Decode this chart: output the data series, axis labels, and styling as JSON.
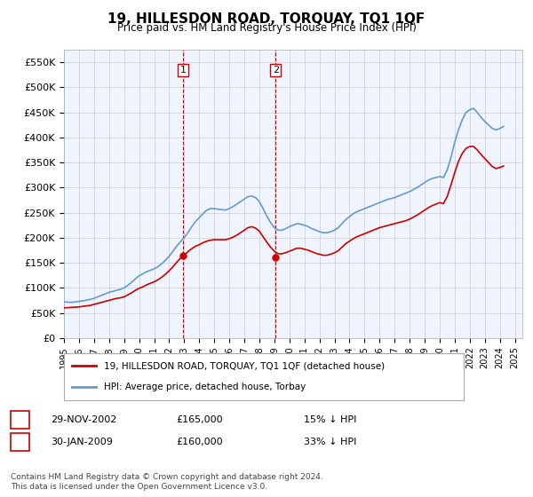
{
  "title": "19, HILLESDON ROAD, TORQUAY, TQ1 1QF",
  "subtitle": "Price paid vs. HM Land Registry's House Price Index (HPI)",
  "hpi_color": "#6699cc",
  "price_color": "#cc0000",
  "background_color": "#ffffff",
  "plot_bg_color": "#f0f4ff",
  "grid_color": "#cccccc",
  "ylim": [
    0,
    575000
  ],
  "yticks": [
    0,
    50000,
    100000,
    150000,
    200000,
    250000,
    300000,
    350000,
    400000,
    450000,
    500000,
    550000
  ],
  "xlim_start": 1995.0,
  "xlim_end": 2025.5,
  "sale1_x": 2002.92,
  "sale1_y": 165000,
  "sale1_label": "1",
  "sale2_x": 2009.08,
  "sale2_y": 160000,
  "sale2_label": "2",
  "legend_line1": "19, HILLESDON ROAD, TORQUAY, TQ1 1QF (detached house)",
  "legend_line2": "HPI: Average price, detached house, Torbay",
  "table_row1_num": "1",
  "table_row1_date": "29-NOV-2002",
  "table_row1_price": "£165,000",
  "table_row1_hpi": "15% ↓ HPI",
  "table_row2_num": "2",
  "table_row2_date": "30-JAN-2009",
  "table_row2_price": "£160,000",
  "table_row2_hpi": "33% ↓ HPI",
  "footer": "Contains HM Land Registry data © Crown copyright and database right 2024.\nThis data is licensed under the Open Government Licence v3.0.",
  "hpi_data_x": [
    1995.0,
    1995.25,
    1995.5,
    1995.75,
    1996.0,
    1996.25,
    1996.5,
    1996.75,
    1997.0,
    1997.25,
    1997.5,
    1997.75,
    1998.0,
    1998.25,
    1998.5,
    1998.75,
    1999.0,
    1999.25,
    1999.5,
    1999.75,
    2000.0,
    2000.25,
    2000.5,
    2000.75,
    2001.0,
    2001.25,
    2001.5,
    2001.75,
    2002.0,
    2002.25,
    2002.5,
    2002.75,
    2003.0,
    2003.25,
    2003.5,
    2003.75,
    2004.0,
    2004.25,
    2004.5,
    2004.75,
    2005.0,
    2005.25,
    2005.5,
    2005.75,
    2006.0,
    2006.25,
    2006.5,
    2006.75,
    2007.0,
    2007.25,
    2007.5,
    2007.75,
    2008.0,
    2008.25,
    2008.5,
    2008.75,
    2009.0,
    2009.25,
    2009.5,
    2009.75,
    2010.0,
    2010.25,
    2010.5,
    2010.75,
    2011.0,
    2011.25,
    2011.5,
    2011.75,
    2012.0,
    2012.25,
    2012.5,
    2012.75,
    2013.0,
    2013.25,
    2013.5,
    2013.75,
    2014.0,
    2014.25,
    2014.5,
    2014.75,
    2015.0,
    2015.25,
    2015.5,
    2015.75,
    2016.0,
    2016.25,
    2016.5,
    2016.75,
    2017.0,
    2017.25,
    2017.5,
    2017.75,
    2018.0,
    2018.25,
    2018.5,
    2018.75,
    2019.0,
    2019.25,
    2019.5,
    2019.75,
    2020.0,
    2020.25,
    2020.5,
    2020.75,
    2021.0,
    2021.25,
    2021.5,
    2021.75,
    2022.0,
    2022.25,
    2022.5,
    2022.75,
    2023.0,
    2023.25,
    2023.5,
    2023.75,
    2024.0,
    2024.25
  ],
  "hpi_data_y": [
    72000,
    71500,
    71000,
    72000,
    73000,
    74000,
    75500,
    77000,
    79000,
    82000,
    85000,
    88000,
    91000,
    93000,
    95000,
    97000,
    100000,
    105000,
    111000,
    118000,
    124000,
    128000,
    132000,
    135000,
    138000,
    142000,
    148000,
    155000,
    163000,
    173000,
    183000,
    192000,
    200000,
    210000,
    222000,
    232000,
    240000,
    248000,
    255000,
    258000,
    258000,
    257000,
    256000,
    255000,
    258000,
    262000,
    267000,
    272000,
    277000,
    282000,
    283000,
    280000,
    272000,
    258000,
    243000,
    230000,
    220000,
    215000,
    215000,
    218000,
    222000,
    225000,
    228000,
    227000,
    225000,
    222000,
    218000,
    215000,
    212000,
    210000,
    210000,
    212000,
    215000,
    220000,
    228000,
    236000,
    242000,
    248000,
    252000,
    255000,
    258000,
    261000,
    264000,
    267000,
    270000,
    273000,
    276000,
    278000,
    280000,
    283000,
    286000,
    289000,
    292000,
    296000,
    300000,
    305000,
    310000,
    315000,
    318000,
    320000,
    322000,
    320000,
    335000,
    360000,
    390000,
    415000,
    435000,
    450000,
    455000,
    458000,
    450000,
    440000,
    432000,
    425000,
    418000,
    415000,
    418000,
    422000
  ],
  "price_data_x": [
    1995.0,
    1995.25,
    1995.5,
    1995.75,
    1996.0,
    1996.25,
    1996.5,
    1996.75,
    1997.0,
    1997.25,
    1997.5,
    1997.75,
    1998.0,
    1998.25,
    1998.5,
    1998.75,
    1999.0,
    1999.25,
    1999.5,
    1999.75,
    2000.0,
    2000.25,
    2000.5,
    2000.75,
    2001.0,
    2001.25,
    2001.5,
    2001.75,
    2002.0,
    2002.25,
    2002.5,
    2002.75,
    2003.0,
    2003.25,
    2003.5,
    2003.75,
    2004.0,
    2004.25,
    2004.5,
    2004.75,
    2005.0,
    2005.25,
    2005.5,
    2005.75,
    2006.0,
    2006.25,
    2006.5,
    2006.75,
    2007.0,
    2007.25,
    2007.5,
    2007.75,
    2008.0,
    2008.25,
    2008.5,
    2008.75,
    2009.0,
    2009.25,
    2009.5,
    2009.75,
    2010.0,
    2010.25,
    2010.5,
    2010.75,
    2011.0,
    2011.25,
    2011.5,
    2011.75,
    2012.0,
    2012.25,
    2012.5,
    2012.75,
    2013.0,
    2013.25,
    2013.5,
    2013.75,
    2014.0,
    2014.25,
    2014.5,
    2014.75,
    2015.0,
    2015.25,
    2015.5,
    2015.75,
    2016.0,
    2016.25,
    2016.5,
    2016.75,
    2017.0,
    2017.25,
    2017.5,
    2017.75,
    2018.0,
    2018.25,
    2018.5,
    2018.75,
    2019.0,
    2019.25,
    2019.5,
    2019.75,
    2020.0,
    2020.25,
    2020.5,
    2020.75,
    2021.0,
    2021.25,
    2021.5,
    2021.75,
    2022.0,
    2022.25,
    2022.5,
    2022.75,
    2023.0,
    2023.25,
    2023.5,
    2023.75,
    2024.0,
    2024.25
  ],
  "price_data_y": [
    60000,
    60500,
    61000,
    61500,
    62000,
    63000,
    64000,
    65000,
    67000,
    69000,
    71000,
    73000,
    75000,
    77000,
    79000,
    80000,
    82000,
    86000,
    90000,
    95000,
    99000,
    102000,
    106000,
    109000,
    112000,
    116000,
    121000,
    127000,
    134000,
    142000,
    151000,
    159000,
    165000,
    172000,
    178000,
    183000,
    186000,
    190000,
    193000,
    195000,
    196000,
    196000,
    196000,
    196000,
    198000,
    201000,
    205000,
    210000,
    215000,
    220000,
    222000,
    219000,
    213000,
    202000,
    191000,
    181000,
    173000,
    168000,
    168000,
    170000,
    173000,
    176000,
    179000,
    179000,
    177000,
    175000,
    172000,
    169000,
    167000,
    165000,
    165000,
    167000,
    170000,
    174000,
    181000,
    188000,
    193000,
    198000,
    202000,
    205000,
    208000,
    211000,
    214000,
    217000,
    220000,
    222000,
    224000,
    226000,
    228000,
    230000,
    232000,
    234000,
    237000,
    241000,
    245000,
    250000,
    255000,
    260000,
    264000,
    267000,
    270000,
    268000,
    282000,
    305000,
    330000,
    352000,
    368000,
    378000,
    382000,
    382000,
    375000,
    366000,
    358000,
    350000,
    342000,
    338000,
    340000,
    343000
  ],
  "vline1_x": 2002.92,
  "vline2_x": 2009.08
}
